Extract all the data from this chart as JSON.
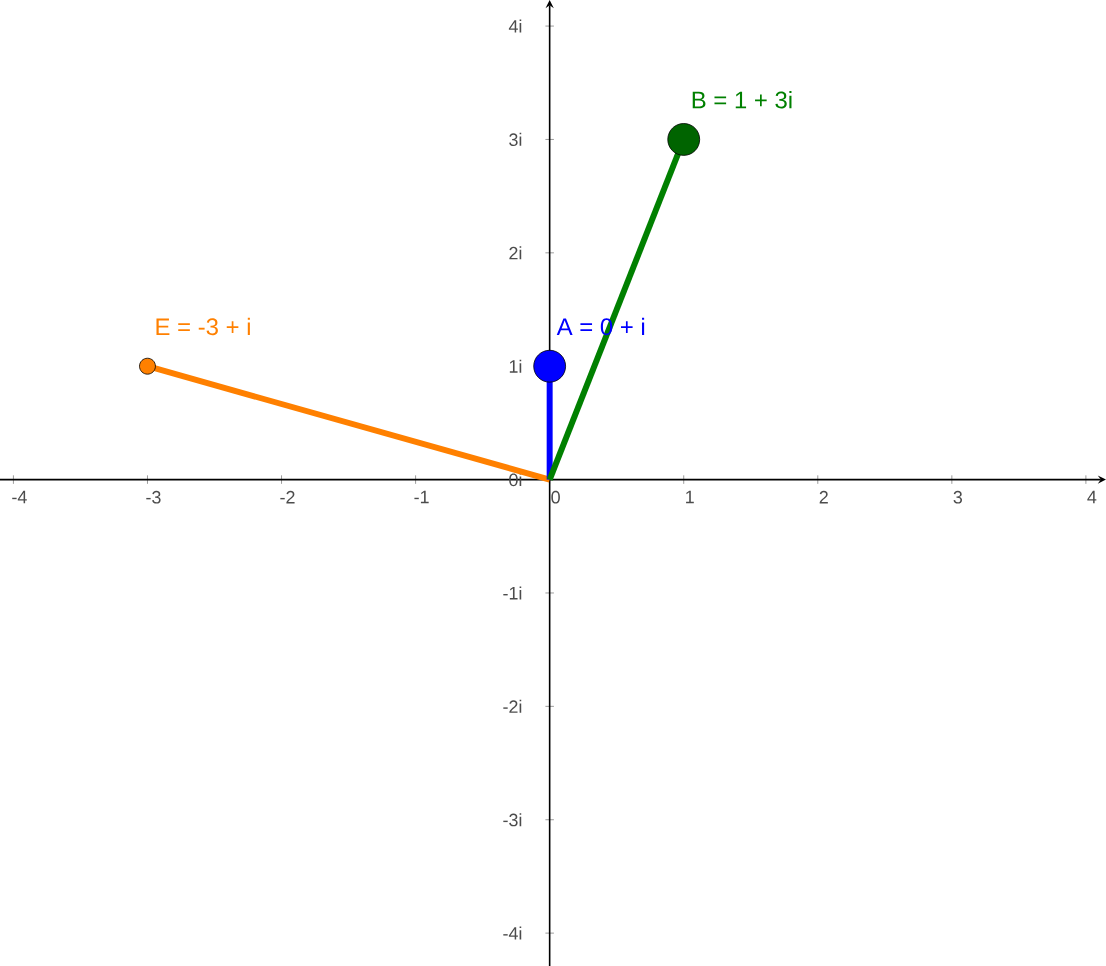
{
  "chart_data": {
    "type": "line",
    "xlim": [
      -4.1,
      4.15
    ],
    "ylim": [
      -4.29,
      4.23
    ],
    "xticks": [
      -4,
      -3,
      -2,
      -1,
      0,
      1,
      2,
      3,
      4
    ],
    "yticks": [
      {
        "value": -4,
        "label": "-4i"
      },
      {
        "value": -3,
        "label": "-3i"
      },
      {
        "value": -2,
        "label": "-2i"
      },
      {
        "value": -1,
        "label": "-1i"
      },
      {
        "value": 0,
        "label": "0i"
      },
      {
        "value": 1,
        "label": "1i"
      },
      {
        "value": 2,
        "label": "2i"
      },
      {
        "value": 3,
        "label": "3i"
      },
      {
        "value": 4,
        "label": "4i"
      }
    ],
    "series": [
      {
        "color": "#ff8000",
        "x": [
          0,
          -3
        ],
        "values": [
          0,
          1
        ],
        "marker": "none"
      },
      {
        "color": "#0000ff",
        "x": [
          0,
          0
        ],
        "values": [
          0,
          1
        ],
        "marker": "none"
      },
      {
        "color": "#008000",
        "x": [
          0,
          1
        ],
        "values": [
          0,
          3
        ],
        "marker": "none"
      },
      {
        "type": "scatter",
        "color": "#ff8000",
        "x": [
          -3
        ],
        "values": [
          1
        ],
        "marker": "circle"
      },
      {
        "type": "scatter",
        "color": "#0000ff",
        "x": [
          0
        ],
        "values": [
          1
        ],
        "marker": "circle"
      },
      {
        "type": "scatter",
        "color": "#006400",
        "x": [
          1
        ],
        "values": [
          3
        ],
        "marker": "circle"
      }
    ],
    "annotations": [
      {
        "text": "E = -3 + i",
        "x": -3,
        "y": 1
      },
      {
        "text": "A = 0 + i",
        "x": 0,
        "y": 1
      },
      {
        "text": "B = 1 + 3i",
        "x": 1,
        "y": 3
      }
    ]
  }
}
